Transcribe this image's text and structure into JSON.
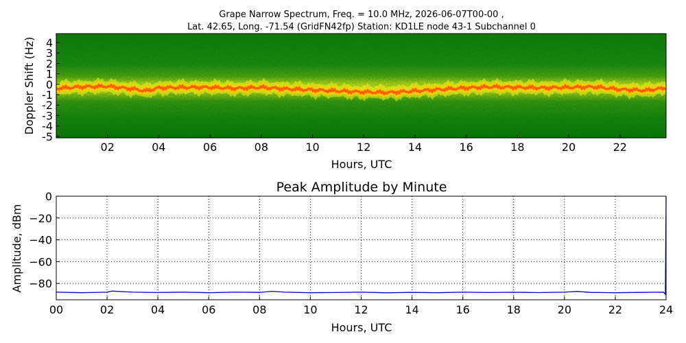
{
  "figure": {
    "title_line1": "Grape Narrow Spectrum, Freq. = 10.0 MHz, 2026-06-07T00-00 ,",
    "title_line2": "Lat.  42.65, Long. -71.54 (GridFN42fp) Station: KD1LE node 43-1 Subchannel 0"
  },
  "chart_data": [
    {
      "type": "heatmap",
      "title": "",
      "xlabel": "Hours, UTC",
      "ylabel": "Doppler Shift (Hz)",
      "xlim": [
        0,
        23.8
      ],
      "ylim": [
        -5,
        5
      ],
      "xticks": [
        2,
        4,
        6,
        8,
        10,
        12,
        14,
        16,
        18,
        20,
        22
      ],
      "xtick_labels": [
        "02",
        "04",
        "06",
        "08",
        "10",
        "12",
        "14",
        "16",
        "18",
        "20",
        "22"
      ],
      "yticks": [
        4,
        3,
        2,
        1,
        0,
        -1,
        -2,
        -3,
        -4,
        -5
      ],
      "ytick_labels": [
        "4",
        "3",
        "2",
        "1",
        "0",
        "-1",
        "-2",
        "-3",
        "-4",
        "-5"
      ],
      "grid": false,
      "colormap": [
        "#006400",
        "#2e9a1a",
        "#c8e619",
        "#ffd700",
        "#ff6a00"
      ],
      "doppler_trace": {
        "x": [
          0,
          1,
          2,
          3,
          3.5,
          4,
          5,
          6,
          7,
          8,
          9,
          10,
          11,
          12,
          13,
          14,
          15,
          16,
          17,
          18,
          19,
          20,
          21,
          22,
          23,
          23.8
        ],
        "y": [
          -0.4,
          -0.25,
          -0.2,
          -0.45,
          -0.65,
          -0.35,
          -0.3,
          -0.3,
          -0.4,
          -0.3,
          -0.45,
          -0.55,
          -0.65,
          -0.75,
          -0.8,
          -0.65,
          -0.5,
          -0.35,
          -0.25,
          -0.3,
          -0.35,
          -0.3,
          -0.25,
          -0.5,
          -0.6,
          -0.35
        ]
      }
    },
    {
      "type": "line",
      "title": "Peak Amplitude by Minute",
      "xlabel": "Hours, UTC",
      "ylabel": "Amplitude, dBm",
      "xlim": [
        0,
        24
      ],
      "ylim": [
        -95,
        0
      ],
      "xticks": [
        0,
        2,
        4,
        6,
        8,
        10,
        12,
        14,
        16,
        18,
        20,
        22,
        24
      ],
      "xtick_labels": [
        "00",
        "02",
        "04",
        "06",
        "08",
        "10",
        "12",
        "14",
        "16",
        "18",
        "20",
        "22",
        "24"
      ],
      "yticks": [
        0,
        -20,
        -40,
        -60,
        -80
      ],
      "ytick_labels": [
        "0",
        "−20",
        "−40",
        "−60",
        "−80"
      ],
      "grid": true,
      "series": [
        {
          "color": "#0000cc",
          "x": [
            0,
            1,
            2,
            2.2,
            3,
            4,
            5,
            6,
            7,
            8,
            8.5,
            9,
            10,
            11,
            12,
            13,
            14,
            15,
            16,
            17,
            18,
            19,
            20,
            20.5,
            21,
            22,
            23,
            23.9,
            23.97,
            24
          ],
          "y": [
            -88,
            -88.5,
            -88,
            -87,
            -88,
            -88.3,
            -88,
            -88.5,
            -88,
            -88.2,
            -87.2,
            -88,
            -88.5,
            -88.3,
            -88,
            -88.6,
            -88.2,
            -88.5,
            -88,
            -88.3,
            -88.1,
            -88.4,
            -88,
            -87.3,
            -88.2,
            -88.5,
            -88.2,
            -88,
            -90,
            -0.5
          ]
        }
      ]
    }
  ]
}
